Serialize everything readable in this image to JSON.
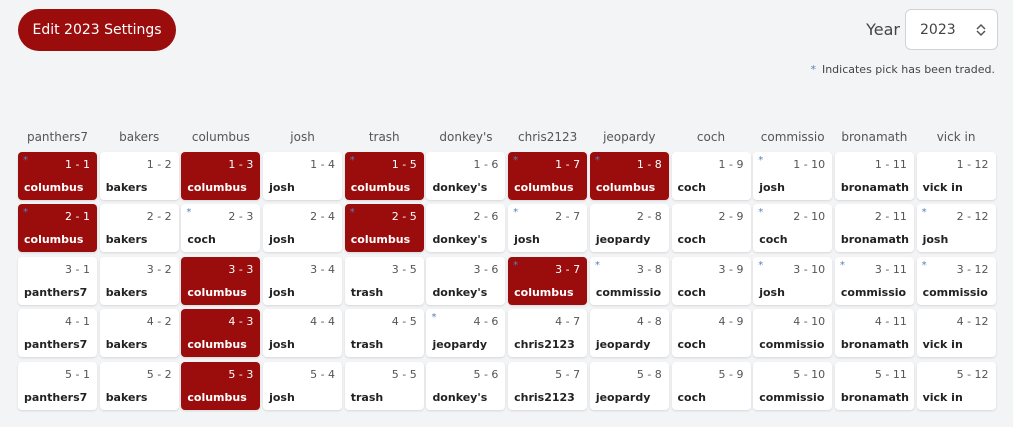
{
  "header": {
    "edit_button_label": "Edit 2023 Settings",
    "year_label": "Year",
    "year_value": "2023"
  },
  "legend": {
    "star": "*",
    "text": "Indicates pick has been traded."
  },
  "colors": {
    "accent": "#9b0d0d",
    "star": "#5b7fb8"
  },
  "teams": [
    "panthers7",
    "bakers",
    "columbus",
    "josh",
    "trash",
    "donkey's",
    "chris2123",
    "jeopardy",
    "coch",
    "commissio",
    "bronamath",
    "vick in"
  ],
  "rounds": [
    [
      {
        "pick": "1 - 1",
        "owner": "columbus",
        "traded": true,
        "owned": true
      },
      {
        "pick": "1 - 2",
        "owner": "bakers",
        "traded": false,
        "owned": false
      },
      {
        "pick": "1 - 3",
        "owner": "columbus",
        "traded": false,
        "owned": true
      },
      {
        "pick": "1 - 4",
        "owner": "josh",
        "traded": false,
        "owned": false
      },
      {
        "pick": "1 - 5",
        "owner": "columbus",
        "traded": true,
        "owned": true
      },
      {
        "pick": "1 - 6",
        "owner": "donkey's",
        "traded": false,
        "owned": false
      },
      {
        "pick": "1 - 7",
        "owner": "columbus",
        "traded": true,
        "owned": true
      },
      {
        "pick": "1 - 8",
        "owner": "columbus",
        "traded": true,
        "owned": true
      },
      {
        "pick": "1 - 9",
        "owner": "coch",
        "traded": false,
        "owned": false
      },
      {
        "pick": "1 - 10",
        "owner": "josh",
        "traded": true,
        "owned": false
      },
      {
        "pick": "1 - 11",
        "owner": "bronamath",
        "traded": false,
        "owned": false
      },
      {
        "pick": "1 - 12",
        "owner": "vick in",
        "traded": false,
        "owned": false
      }
    ],
    [
      {
        "pick": "2 - 1",
        "owner": "columbus",
        "traded": true,
        "owned": true
      },
      {
        "pick": "2 - 2",
        "owner": "bakers",
        "traded": false,
        "owned": false
      },
      {
        "pick": "2 - 3",
        "owner": "coch",
        "traded": true,
        "owned": false
      },
      {
        "pick": "2 - 4",
        "owner": "josh",
        "traded": false,
        "owned": false
      },
      {
        "pick": "2 - 5",
        "owner": "columbus",
        "traded": true,
        "owned": true
      },
      {
        "pick": "2 - 6",
        "owner": "donkey's",
        "traded": false,
        "owned": false
      },
      {
        "pick": "2 - 7",
        "owner": "josh",
        "traded": true,
        "owned": false
      },
      {
        "pick": "2 - 8",
        "owner": "jeopardy",
        "traded": false,
        "owned": false
      },
      {
        "pick": "2 - 9",
        "owner": "coch",
        "traded": false,
        "owned": false
      },
      {
        "pick": "2 - 10",
        "owner": "coch",
        "traded": true,
        "owned": false
      },
      {
        "pick": "2 - 11",
        "owner": "bronamath",
        "traded": false,
        "owned": false
      },
      {
        "pick": "2 - 12",
        "owner": "josh",
        "traded": true,
        "owned": false
      }
    ],
    [
      {
        "pick": "3 - 1",
        "owner": "panthers7",
        "traded": false,
        "owned": false
      },
      {
        "pick": "3 - 2",
        "owner": "bakers",
        "traded": false,
        "owned": false
      },
      {
        "pick": "3 - 3",
        "owner": "columbus",
        "traded": false,
        "owned": true
      },
      {
        "pick": "3 - 4",
        "owner": "josh",
        "traded": false,
        "owned": false
      },
      {
        "pick": "3 - 5",
        "owner": "trash",
        "traded": false,
        "owned": false
      },
      {
        "pick": "3 - 6",
        "owner": "donkey's",
        "traded": false,
        "owned": false
      },
      {
        "pick": "3 - 7",
        "owner": "columbus",
        "traded": true,
        "owned": true
      },
      {
        "pick": "3 - 8",
        "owner": "commissio",
        "traded": true,
        "owned": false
      },
      {
        "pick": "3 - 9",
        "owner": "coch",
        "traded": false,
        "owned": false
      },
      {
        "pick": "3 - 10",
        "owner": "josh",
        "traded": true,
        "owned": false
      },
      {
        "pick": "3 - 11",
        "owner": "commissio",
        "traded": true,
        "owned": false
      },
      {
        "pick": "3 - 12",
        "owner": "commissio",
        "traded": true,
        "owned": false
      }
    ],
    [
      {
        "pick": "4 - 1",
        "owner": "panthers7",
        "traded": false,
        "owned": false
      },
      {
        "pick": "4 - 2",
        "owner": "bakers",
        "traded": false,
        "owned": false
      },
      {
        "pick": "4 - 3",
        "owner": "columbus",
        "traded": false,
        "owned": true
      },
      {
        "pick": "4 - 4",
        "owner": "josh",
        "traded": false,
        "owned": false
      },
      {
        "pick": "4 - 5",
        "owner": "trash",
        "traded": false,
        "owned": false
      },
      {
        "pick": "4 - 6",
        "owner": "jeopardy",
        "traded": true,
        "owned": false
      },
      {
        "pick": "4 - 7",
        "owner": "chris2123",
        "traded": false,
        "owned": false
      },
      {
        "pick": "4 - 8",
        "owner": "jeopardy",
        "traded": false,
        "owned": false
      },
      {
        "pick": "4 - 9",
        "owner": "coch",
        "traded": false,
        "owned": false
      },
      {
        "pick": "4 - 10",
        "owner": "commissio",
        "traded": false,
        "owned": false
      },
      {
        "pick": "4 - 11",
        "owner": "bronamath",
        "traded": false,
        "owned": false
      },
      {
        "pick": "4 - 12",
        "owner": "vick in",
        "traded": false,
        "owned": false
      }
    ],
    [
      {
        "pick": "5 - 1",
        "owner": "panthers7",
        "traded": false,
        "owned": false
      },
      {
        "pick": "5 - 2",
        "owner": "bakers",
        "traded": false,
        "owned": false
      },
      {
        "pick": "5 - 3",
        "owner": "columbus",
        "traded": false,
        "owned": true
      },
      {
        "pick": "5 - 4",
        "owner": "josh",
        "traded": false,
        "owned": false
      },
      {
        "pick": "5 - 5",
        "owner": "trash",
        "traded": false,
        "owned": false
      },
      {
        "pick": "5 - 6",
        "owner": "donkey's",
        "traded": false,
        "owned": false
      },
      {
        "pick": "5 - 7",
        "owner": "chris2123",
        "traded": false,
        "owned": false
      },
      {
        "pick": "5 - 8",
        "owner": "jeopardy",
        "traded": false,
        "owned": false
      },
      {
        "pick": "5 - 9",
        "owner": "coch",
        "traded": false,
        "owned": false
      },
      {
        "pick": "5 - 10",
        "owner": "commissio",
        "traded": false,
        "owned": false
      },
      {
        "pick": "5 - 11",
        "owner": "bronamath",
        "traded": false,
        "owned": false
      },
      {
        "pick": "5 - 12",
        "owner": "vick in",
        "traded": false,
        "owned": false
      }
    ]
  ]
}
